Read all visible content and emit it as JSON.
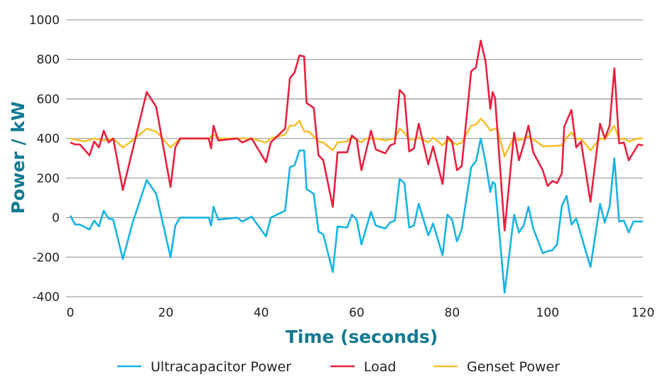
{
  "chart_data": {
    "type": "line",
    "title": "",
    "xlabel": "Time (seconds)",
    "ylabel": "Power / kW",
    "xlim": [
      0,
      120
    ],
    "ylim": [
      -400,
      1000
    ],
    "xticks": [
      0,
      20,
      40,
      60,
      80,
      100,
      120
    ],
    "yticks": [
      -400,
      -200,
      0,
      200,
      400,
      600,
      800,
      1000
    ],
    "grid": "horizontal",
    "legend": "bottom",
    "colors": {
      "axis_label": "#137a93",
      "grid": "#a0a0a0"
    },
    "series": [
      {
        "name": "Ultracapacitor Power",
        "color": "#16b4e3",
        "points": [
          [
            0,
            10
          ],
          [
            1,
            -35
          ],
          [
            2,
            -35
          ],
          [
            4,
            -60
          ],
          [
            5,
            -15
          ],
          [
            6,
            -45
          ],
          [
            7,
            35
          ],
          [
            8,
            -5
          ],
          [
            9,
            -10
          ],
          [
            11,
            -210
          ],
          [
            13,
            -30
          ],
          [
            16,
            190
          ],
          [
            18,
            120
          ],
          [
            21,
            -200
          ],
          [
            22,
            -40
          ],
          [
            23,
            0
          ],
          [
            29,
            0
          ],
          [
            29.5,
            -40
          ],
          [
            30,
            55
          ],
          [
            31,
            -10
          ],
          [
            35,
            0
          ],
          [
            36,
            -20
          ],
          [
            38,
            5
          ],
          [
            41,
            -95
          ],
          [
            42,
            0
          ],
          [
            45,
            35
          ],
          [
            46,
            255
          ],
          [
            47,
            265
          ],
          [
            48,
            340
          ],
          [
            49,
            340
          ],
          [
            49.5,
            145
          ],
          [
            51,
            120
          ],
          [
            52,
            -70
          ],
          [
            53,
            -85
          ],
          [
            55,
            -275
          ],
          [
            56,
            -45
          ],
          [
            58,
            -50
          ],
          [
            59,
            15
          ],
          [
            60,
            -10
          ],
          [
            61,
            -135
          ],
          [
            63,
            30
          ],
          [
            64,
            -40
          ],
          [
            66,
            -55
          ],
          [
            67,
            -25
          ],
          [
            68,
            -15
          ],
          [
            69,
            195
          ],
          [
            70,
            175
          ],
          [
            71,
            -50
          ],
          [
            72,
            -40
          ],
          [
            73,
            70
          ],
          [
            75,
            -90
          ],
          [
            76,
            -30
          ],
          [
            78,
            -190
          ],
          [
            79,
            15
          ],
          [
            80,
            -10
          ],
          [
            81,
            -120
          ],
          [
            82,
            -60
          ],
          [
            84,
            255
          ],
          [
            85,
            285
          ],
          [
            86,
            400
          ],
          [
            87,
            280
          ],
          [
            88,
            130
          ],
          [
            88.5,
            180
          ],
          [
            89,
            170
          ],
          [
            91,
            -380
          ],
          [
            93,
            15
          ],
          [
            94,
            -75
          ],
          [
            95,
            -40
          ],
          [
            96,
            55
          ],
          [
            97,
            -55
          ],
          [
            99,
            -180
          ],
          [
            100,
            -170
          ],
          [
            101,
            -165
          ],
          [
            102,
            -135
          ],
          [
            103,
            60
          ],
          [
            104,
            110
          ],
          [
            105,
            -35
          ],
          [
            106,
            -5
          ],
          [
            109,
            -250
          ],
          [
            111,
            70
          ],
          [
            112,
            -25
          ],
          [
            113,
            55
          ],
          [
            114,
            300
          ],
          [
            115,
            -20
          ],
          [
            116,
            -15
          ],
          [
            117,
            -75
          ],
          [
            118,
            -20
          ],
          [
            120,
            -20
          ]
        ]
      },
      {
        "name": "Load",
        "color": "#e8203f",
        "points": [
          [
            0,
            380
          ],
          [
            1,
            370
          ],
          [
            2,
            370
          ],
          [
            4,
            315
          ],
          [
            5,
            385
          ],
          [
            6,
            355
          ],
          [
            7,
            440
          ],
          [
            8,
            380
          ],
          [
            9,
            400
          ],
          [
            11,
            140
          ],
          [
            16,
            635
          ],
          [
            18,
            560
          ],
          [
            21,
            155
          ],
          [
            22,
            355
          ],
          [
            23,
            400
          ],
          [
            29,
            400
          ],
          [
            29.5,
            350
          ],
          [
            30,
            465
          ],
          [
            31,
            390
          ],
          [
            35,
            400
          ],
          [
            36,
            380
          ],
          [
            38,
            400
          ],
          [
            41,
            280
          ],
          [
            42,
            380
          ],
          [
            45,
            450
          ],
          [
            46,
            705
          ],
          [
            47,
            735
          ],
          [
            48,
            820
          ],
          [
            49,
            815
          ],
          [
            49.5,
            580
          ],
          [
            51,
            555
          ],
          [
            52,
            315
          ],
          [
            53,
            290
          ],
          [
            55,
            55
          ],
          [
            56,
            330
          ],
          [
            58,
            330
          ],
          [
            59,
            415
          ],
          [
            60,
            395
          ],
          [
            61,
            240
          ],
          [
            63,
            440
          ],
          [
            64,
            345
          ],
          [
            66,
            325
          ],
          [
            67,
            365
          ],
          [
            68,
            375
          ],
          [
            69,
            645
          ],
          [
            70,
            620
          ],
          [
            71,
            335
          ],
          [
            72,
            350
          ],
          [
            73,
            475
          ],
          [
            75,
            270
          ],
          [
            76,
            360
          ],
          [
            78,
            170
          ],
          [
            79,
            410
          ],
          [
            80,
            385
          ],
          [
            81,
            240
          ],
          [
            82,
            260
          ],
          [
            84,
            740
          ],
          [
            85,
            760
          ],
          [
            86,
            895
          ],
          [
            87,
            790
          ],
          [
            88,
            550
          ],
          [
            88.5,
            635
          ],
          [
            89,
            605
          ],
          [
            91,
            -65
          ],
          [
            93,
            430
          ],
          [
            94,
            290
          ],
          [
            95,
            370
          ],
          [
            96,
            465
          ],
          [
            97,
            330
          ],
          [
            99,
            240
          ],
          [
            100,
            160
          ],
          [
            101,
            185
          ],
          [
            102,
            175
          ],
          [
            103,
            225
          ],
          [
            103.5,
            460
          ],
          [
            105,
            545
          ],
          [
            106,
            355
          ],
          [
            107,
            385
          ],
          [
            109,
            80
          ],
          [
            111,
            475
          ],
          [
            112,
            400
          ],
          [
            113,
            465
          ],
          [
            114,
            755
          ],
          [
            115,
            375
          ],
          [
            116,
            380
          ],
          [
            117,
            290
          ],
          [
            119,
            370
          ],
          [
            120,
            365
          ]
        ]
      },
      {
        "name": "Genset Power",
        "color": "#f7c12c",
        "points": [
          [
            0,
            400
          ],
          [
            3,
            385
          ],
          [
            5,
            400
          ],
          [
            7,
            390
          ],
          [
            9,
            400
          ],
          [
            11,
            355
          ],
          [
            13,
            390
          ],
          [
            16,
            450
          ],
          [
            18,
            435
          ],
          [
            21,
            355
          ],
          [
            23,
            400
          ],
          [
            29,
            400
          ],
          [
            30,
            420
          ],
          [
            31,
            400
          ],
          [
            38,
            400
          ],
          [
            41,
            380
          ],
          [
            42,
            400
          ],
          [
            45,
            420
          ],
          [
            46,
            465
          ],
          [
            47,
            465
          ],
          [
            48,
            490
          ],
          [
            49,
            435
          ],
          [
            50,
            435
          ],
          [
            52,
            385
          ],
          [
            53,
            380
          ],
          [
            55,
            340
          ],
          [
            56,
            380
          ],
          [
            58,
            385
          ],
          [
            59,
            410
          ],
          [
            60,
            395
          ],
          [
            61,
            380
          ],
          [
            62,
            400
          ],
          [
            64,
            400
          ],
          [
            66,
            390
          ],
          [
            68,
            400
          ],
          [
            69,
            450
          ],
          [
            70,
            430
          ],
          [
            71,
            395
          ],
          [
            72,
            395
          ],
          [
            73,
            405
          ],
          [
            75,
            380
          ],
          [
            76,
            405
          ],
          [
            78,
            365
          ],
          [
            79,
            395
          ],
          [
            80,
            380
          ],
          [
            81,
            370
          ],
          [
            82,
            380
          ],
          [
            84,
            465
          ],
          [
            85,
            470
          ],
          [
            86,
            500
          ],
          [
            87,
            475
          ],
          [
            88,
            440
          ],
          [
            89,
            450
          ],
          [
            89.5,
            445
          ],
          [
            91,
            310
          ],
          [
            93,
            410
          ],
          [
            94,
            390
          ],
          [
            95,
            400
          ],
          [
            96,
            410
          ],
          [
            98,
            380
          ],
          [
            99,
            360
          ],
          [
            103,
            365
          ],
          [
            104,
            405
          ],
          [
            105,
            430
          ],
          [
            106,
            395
          ],
          [
            107,
            400
          ],
          [
            109,
            340
          ],
          [
            111,
            400
          ],
          [
            112,
            395
          ],
          [
            114,
            465
          ],
          [
            115,
            395
          ],
          [
            116,
            400
          ],
          [
            117,
            385
          ],
          [
            119,
            400
          ],
          [
            120,
            400
          ]
        ]
      }
    ]
  }
}
